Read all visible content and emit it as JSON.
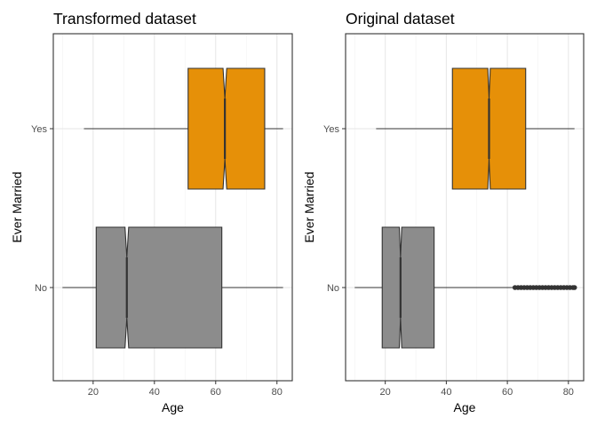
{
  "chart_data": [
    {
      "type": "boxplot",
      "orientation": "horizontal",
      "notched": true,
      "title": "Transformed dataset",
      "xlabel": "Age",
      "ylabel": "Ever Married",
      "xlim": [
        7,
        85
      ],
      "xticks": [
        20,
        40,
        60,
        80
      ],
      "categories": [
        "No",
        "Yes"
      ],
      "grid": true,
      "series": [
        {
          "category": "No",
          "color": "#8c8c8c",
          "min": 10,
          "q1": 21,
          "median": 31,
          "q3": 62,
          "max": 82,
          "notch_low": 30.4,
          "notch_high": 31.6,
          "outliers": []
        },
        {
          "category": "Yes",
          "color": "#e69008",
          "min": 17,
          "q1": 51,
          "median": 63,
          "q3": 76,
          "max": 82,
          "notch_low": 62.4,
          "notch_high": 63.6,
          "outliers": []
        }
      ]
    },
    {
      "type": "boxplot",
      "orientation": "horizontal",
      "notched": true,
      "title": "Original dataset",
      "xlabel": "Age",
      "ylabel": "Ever Married",
      "xlim": [
        7,
        85
      ],
      "xticks": [
        20,
        40,
        60,
        80
      ],
      "categories": [
        "No",
        "Yes"
      ],
      "grid": true,
      "series": [
        {
          "category": "No",
          "color": "#8c8c8c",
          "min": 10,
          "q1": 19,
          "median": 25,
          "q3": 36,
          "max": 62,
          "notch_low": 24.6,
          "notch_high": 25.4,
          "outliers": [
            62.5,
            63.5,
            64.5,
            65.5,
            66.5,
            67.5,
            68.5,
            69.5,
            70.5,
            71.5,
            72.5,
            73.5,
            74.5,
            75.5,
            76.5,
            77.5,
            78.5,
            79.5,
            80.5,
            81.5,
            82
          ]
        },
        {
          "category": "Yes",
          "color": "#e69008",
          "min": 17,
          "q1": 42,
          "median": 54,
          "q3": 66,
          "max": 82,
          "notch_low": 53.6,
          "notch_high": 54.4,
          "outliers": []
        }
      ]
    }
  ]
}
